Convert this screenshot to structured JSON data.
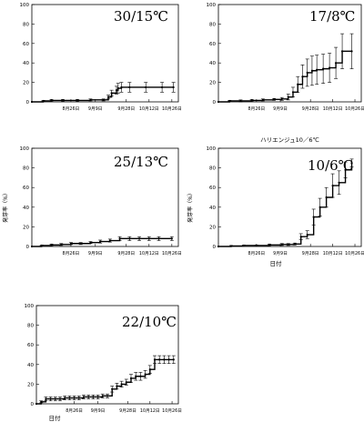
{
  "chart_data": [
    {
      "type": "line",
      "panel": "30/15℃",
      "title": "",
      "xlabel": "",
      "ylabel": "",
      "ylim": [
        0,
        100
      ],
      "yticks": [
        0,
        20,
        40,
        60,
        80,
        100
      ],
      "xticks": [
        "8月26日",
        "9月9日",
        "9月28日",
        "10月12日",
        "10月26日"
      ],
      "series": [
        {
          "x": [
            0,
            7,
            12,
            19,
            28,
            36,
            44,
            47,
            49,
            52,
            53,
            55,
            60,
            70,
            80,
            87
          ],
          "y": [
            0,
            1,
            1.5,
            1.5,
            1.5,
            2,
            2,
            5,
            9,
            12,
            14,
            15,
            15,
            15,
            15,
            15
          ],
          "err": [
            0,
            0.5,
            1,
            1,
            1,
            1,
            1,
            2,
            3,
            4,
            5,
            5,
            5,
            5,
            5,
            5
          ]
        }
      ]
    },
    {
      "type": "line",
      "panel": "17/8℃",
      "title": "",
      "xlabel": "",
      "ylabel": "",
      "ylim": [
        0,
        100
      ],
      "yticks": [
        0,
        20,
        40,
        60,
        80,
        100
      ],
      "xticks": [
        "8月26日",
        "9月9日",
        "9月28日",
        "10月12日",
        "10月26日"
      ],
      "series": [
        {
          "x": [
            0,
            7,
            14,
            21,
            28,
            35,
            40,
            44,
            47,
            50,
            53,
            56,
            59,
            62,
            66,
            70,
            74,
            78,
            84
          ],
          "y": [
            0,
            1,
            1,
            1.5,
            2,
            2.5,
            3,
            5,
            10,
            18,
            26,
            30,
            32,
            33,
            34,
            35,
            40,
            52,
            52
          ],
          "err": [
            0,
            0.5,
            1,
            1,
            1,
            1,
            1.5,
            3,
            5,
            8,
            12,
            14,
            15,
            15,
            15,
            15,
            16,
            18,
            18
          ]
        }
      ]
    },
    {
      "type": "line",
      "panel": "25/13℃",
      "title": "",
      "xlabel": "",
      "ylabel": "発芽率（%）",
      "ylim": [
        0,
        100
      ],
      "yticks": [
        0,
        20,
        40,
        60,
        80,
        100
      ],
      "xticks": [
        "8月26日",
        "9月9日",
        "9月28日",
        "10月12日",
        "10月26日"
      ],
      "series": [
        {
          "x": [
            0,
            6,
            12,
            18,
            24,
            30,
            36,
            42,
            48,
            54,
            60,
            66,
            72,
            78,
            86
          ],
          "y": [
            0,
            1,
            1.5,
            2,
            3,
            3,
            4,
            5,
            6,
            8,
            8,
            8,
            8,
            8,
            8
          ],
          "err": [
            0,
            0.5,
            1,
            1,
            1,
            1,
            1,
            1.5,
            1.5,
            2,
            2,
            2,
            2,
            2,
            2
          ]
        }
      ]
    },
    {
      "type": "line",
      "panel": "10/6℃",
      "title": "ハリエンジュ10／6℃",
      "xlabel": "日付",
      "ylabel": "発芽率（%）",
      "ylim": [
        0,
        100
      ],
      "yticks": [
        0,
        20,
        40,
        60,
        80,
        100
      ],
      "xticks": [
        "8月26日",
        "9月9日",
        "9月28日",
        "10月12日",
        "10月26日"
      ],
      "series": [
        {
          "x": [
            0,
            8,
            16,
            24,
            32,
            40,
            44,
            48,
            52,
            56,
            60,
            64,
            68,
            72,
            76,
            80,
            84
          ],
          "y": [
            0,
            0.5,
            1,
            1,
            1.5,
            2,
            2,
            2.5,
            10,
            12,
            30,
            40,
            50,
            62,
            65,
            78,
            85
          ],
          "err": [
            0,
            0.5,
            0.5,
            0.5,
            1,
            1,
            1,
            1,
            3,
            4,
            8,
            9,
            10,
            12,
            12,
            8,
            4
          ]
        }
      ]
    },
    {
      "type": "line",
      "panel": "22/10℃",
      "title": "",
      "xlabel": "日付",
      "ylabel": "",
      "ylim": [
        0,
        100
      ],
      "yticks": [
        0,
        20,
        40,
        60,
        80,
        100
      ],
      "xticks": [
        "8月26日",
        "9月9日",
        "9月28日",
        "10月12日",
        "10月26日"
      ],
      "series": [
        {
          "x": [
            0,
            3,
            6,
            9,
            12,
            15,
            18,
            21,
            24,
            27,
            30,
            33,
            36,
            39,
            42,
            45,
            48,
            51,
            54,
            57,
            60,
            63,
            66,
            69,
            72,
            75,
            78,
            81,
            84,
            87
          ],
          "y": [
            0,
            2,
            5,
            5,
            5,
            5,
            6,
            6,
            6,
            6,
            7,
            7,
            7,
            7,
            8,
            8,
            15,
            18,
            20,
            22,
            26,
            28,
            28,
            30,
            35,
            45,
            45,
            45,
            45,
            45
          ],
          "err": [
            0,
            1,
            2,
            2,
            2,
            2,
            2,
            2,
            2,
            2,
            2,
            2,
            2,
            2,
            2,
            2,
            3,
            3,
            3,
            3,
            4,
            4,
            4,
            4,
            4,
            4,
            4,
            4,
            4,
            4
          ]
        }
      ]
    }
  ]
}
